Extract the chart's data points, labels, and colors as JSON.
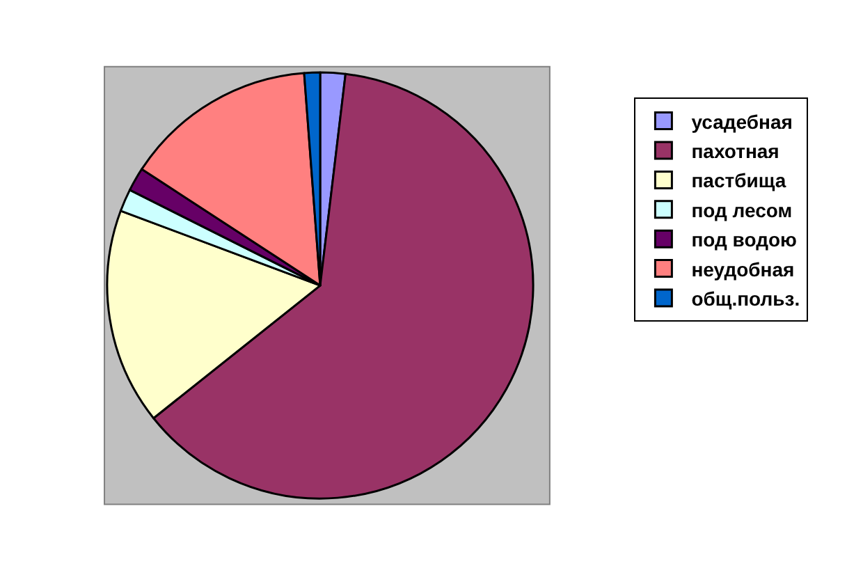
{
  "chart_data": {
    "type": "pie",
    "categories": [
      "усадебная",
      "пахотная",
      "пастбища",
      "под лесом",
      "под водою",
      "неудобная",
      "общ.польз."
    ],
    "values": [
      1.9,
      62.4,
      16.4,
      1.7,
      1.8,
      14.6,
      1.2
    ],
    "colors": [
      "#9999ff",
      "#993366",
      "#ffffcc",
      "#ccffff",
      "#660066",
      "#ff8080",
      "#0066cc"
    ],
    "legend": "right"
  }
}
